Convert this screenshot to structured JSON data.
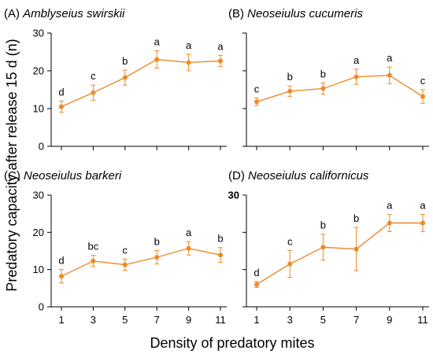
{
  "figure": {
    "xlabel": "Density of predatory mites",
    "ylabel": "Predatory capacity after release 15 d (n)"
  },
  "chart_data": [
    {
      "type": "line",
      "panel_tag": "(A)",
      "species": "Amblyseius swirskii",
      "x": [
        1,
        3,
        5,
        7,
        9,
        11
      ],
      "values": [
        10.5,
        14.2,
        18.2,
        23.0,
        22.2,
        22.6
      ],
      "errors": [
        1.5,
        2.0,
        2.0,
        2.3,
        2.2,
        1.5
      ],
      "letters": [
        "d",
        "c",
        "b",
        "a",
        "a",
        "a"
      ],
      "ylim": [
        0,
        30
      ],
      "yticks": [
        "0",
        "10",
        "20",
        "30"
      ],
      "xticks": [],
      "color": "#ed8a27",
      "grid": false
    },
    {
      "type": "line",
      "panel_tag": "(B)",
      "species": "Neoseiulus cucumeris",
      "x": [
        1,
        3,
        5,
        7,
        9,
        11
      ],
      "values": [
        11.8,
        14.6,
        15.3,
        18.4,
        18.8,
        13.2
      ],
      "errors": [
        1.0,
        1.4,
        1.5,
        2.0,
        2.2,
        1.8
      ],
      "letters": [
        "c",
        "b",
        "b",
        "a",
        "a",
        "c"
      ],
      "ylim": [
        0,
        30
      ],
      "yticks": [],
      "xticks": [],
      "color": "#ed8a27",
      "grid": false
    },
    {
      "type": "line",
      "panel_tag": "(C)",
      "species": "Neoseiulus barkeri",
      "x": [
        1,
        3,
        5,
        7,
        9,
        11
      ],
      "values": [
        8.2,
        12.3,
        11.3,
        13.3,
        15.7,
        13.9
      ],
      "errors": [
        1.8,
        1.5,
        1.5,
        1.8,
        1.8,
        2.0
      ],
      "letters": [
        "d",
        "bc",
        "c",
        "b",
        "a",
        "b"
      ],
      "ylim": [
        0,
        30
      ],
      "yticks": [
        "0",
        "10",
        "20",
        "30"
      ],
      "xticks": [
        "1",
        "3",
        "5",
        "7",
        "9",
        "11"
      ],
      "color": "#ed8a27",
      "grid": false
    },
    {
      "type": "line",
      "panel_tag": "(D)",
      "species": "Neoseiulus californicus",
      "x": [
        1,
        3,
        5,
        7,
        9,
        11
      ],
      "values": [
        6.0,
        11.5,
        16.0,
        15.5,
        22.5,
        22.5
      ],
      "errors": [
        0.8,
        3.6,
        3.5,
        5.8,
        2.3,
        2.3
      ],
      "letters": [
        "d",
        "c",
        "b",
        "b",
        "a",
        "a"
      ],
      "ylim": [
        0,
        30
      ],
      "yticks": [
        "30"
      ],
      "xticks": [
        "1",
        "3",
        "5",
        "7",
        "9",
        "11"
      ],
      "color": "#ed8a27",
      "grid": false
    }
  ]
}
